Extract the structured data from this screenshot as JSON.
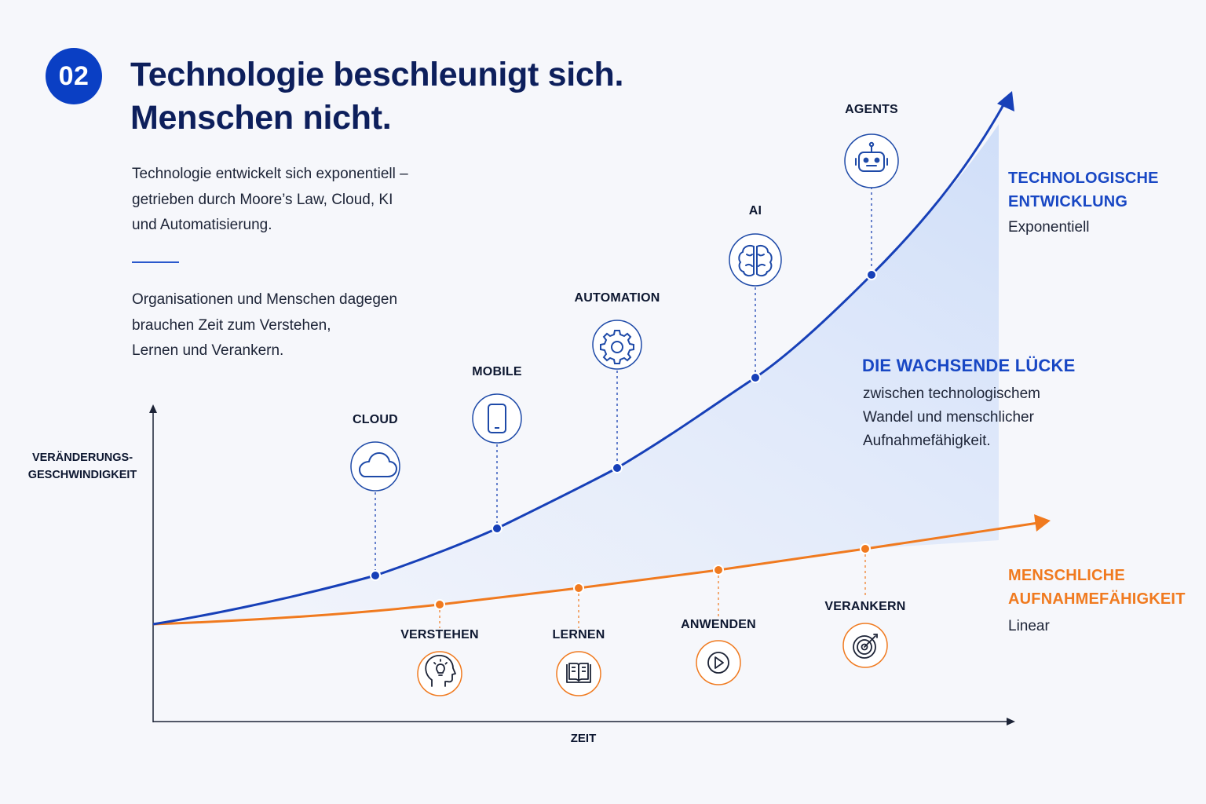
{
  "header": {
    "badge": "02",
    "title_line1": "Technologie beschleunigt sich.",
    "title_line2": "Menschen nicht."
  },
  "intro": {
    "para1": [
      "Technologie entwickelt sich exponentiell –",
      "getrieben durch Moore’s Law, Cloud, KI",
      "und Automatisierung."
    ],
    "para2": [
      "Organisationen und Menschen dagegen",
      "brauchen Zeit zum Verstehen,",
      "Lernen und Verankern."
    ]
  },
  "axes": {
    "y_label_line1": "VERÄNDERUNGS-",
    "y_label_line2": "GESCHWINDIGKEIT",
    "x_label": "ZEIT"
  },
  "technology": {
    "title_line1": "TECHNOLOGISCHE",
    "title_line2": "ENTWICKLUNG",
    "subtitle": "Exponentiell",
    "color": "#1847c4",
    "milestones": [
      {
        "label": "CLOUD",
        "icon": "cloud-icon"
      },
      {
        "label": "MOBILE",
        "icon": "smartphone-icon"
      },
      {
        "label": "AUTOMATION",
        "icon": "gear-icon"
      },
      {
        "label": "AI",
        "icon": "brain-icon"
      },
      {
        "label": "AGENTS",
        "icon": "robot-icon"
      }
    ]
  },
  "human": {
    "title_line1": "MENSCHLICHE",
    "title_line2": "AUFNAHMEFÄHIGKEIT",
    "subtitle": "Linear",
    "color": "#f07a1f",
    "milestones": [
      {
        "label": "VERSTEHEN",
        "icon": "head-lightbulb-icon"
      },
      {
        "label": "LERNEN",
        "icon": "open-book-icon"
      },
      {
        "label": "ANWENDEN",
        "icon": "play-icon"
      },
      {
        "label": "VERANKERN",
        "icon": "target-icon"
      }
    ]
  },
  "gap": {
    "title": "DIE WACHSENDE LÜCKE",
    "text": [
      "zwischen technologischem",
      "Wandel und menschlicher",
      "Aufnahmefähigkeit."
    ]
  }
}
